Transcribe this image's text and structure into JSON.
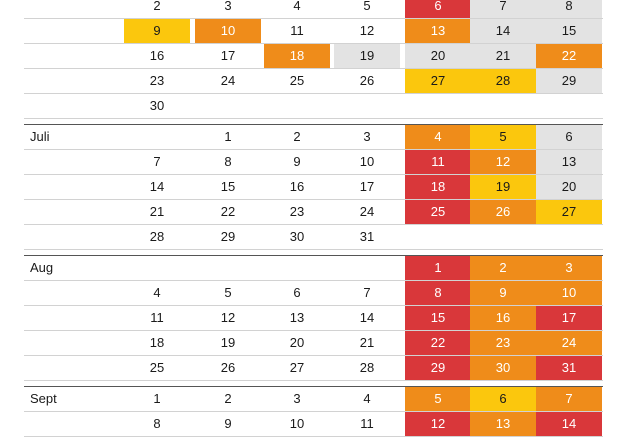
{
  "colors": {
    "red": "#d9373a",
    "orange": "#ef8c1a",
    "yellow": "#fbc70d",
    "grey": "#e3e3e3",
    "white": "#ffffff"
  },
  "months": [
    {
      "label": "",
      "weeks": [
        [
          null,
          "2",
          "3",
          "4",
          "5",
          {
            "d": "6",
            "c": "red"
          },
          {
            "d": "7",
            "c": "grey"
          },
          {
            "d": "8",
            "c": "grey"
          }
        ],
        [
          null,
          {
            "d": "9",
            "c": "yellow"
          },
          {
            "d": "10",
            "c": "orange"
          },
          "11",
          "12",
          {
            "d": "13",
            "c": "orange"
          },
          {
            "d": "14",
            "c": "grey"
          },
          {
            "d": "15",
            "c": "grey"
          }
        ],
        [
          null,
          "16",
          "17",
          {
            "d": "18",
            "c": "orange"
          },
          {
            "d": "19",
            "c": "grey"
          },
          {
            "d": "20",
            "c": "grey"
          },
          {
            "d": "21",
            "c": "grey"
          },
          {
            "d": "22",
            "c": "orange"
          }
        ],
        [
          null,
          "23",
          "24",
          "25",
          "26",
          {
            "d": "27",
            "c": "yellow"
          },
          {
            "d": "28",
            "c": "yellow"
          },
          {
            "d": "29",
            "c": "grey"
          }
        ],
        [
          null,
          "30",
          null,
          null,
          null,
          null,
          null,
          null
        ]
      ]
    },
    {
      "label": "Juli",
      "weeks": [
        [
          null,
          null,
          "1",
          "2",
          "3",
          {
            "d": "4",
            "c": "orange"
          },
          {
            "d": "5",
            "c": "yellow"
          },
          {
            "d": "6",
            "c": "grey"
          }
        ],
        [
          null,
          "7",
          "8",
          "9",
          "10",
          {
            "d": "11",
            "c": "red"
          },
          {
            "d": "12",
            "c": "orange"
          },
          {
            "d": "13",
            "c": "grey"
          }
        ],
        [
          null,
          "14",
          "15",
          "16",
          "17",
          {
            "d": "18",
            "c": "red"
          },
          {
            "d": "19",
            "c": "yellow"
          },
          {
            "d": "20",
            "c": "grey"
          }
        ],
        [
          null,
          "21",
          "22",
          "23",
          "24",
          {
            "d": "25",
            "c": "red"
          },
          {
            "d": "26",
            "c": "orange"
          },
          {
            "d": "27",
            "c": "yellow"
          }
        ],
        [
          null,
          "28",
          "29",
          "30",
          "31",
          null,
          null,
          null
        ]
      ]
    },
    {
      "label": "Aug",
      "weeks": [
        [
          null,
          null,
          null,
          null,
          null,
          {
            "d": "1",
            "c": "red"
          },
          {
            "d": "2",
            "c": "orange"
          },
          {
            "d": "3",
            "c": "orange"
          }
        ],
        [
          null,
          "4",
          "5",
          "6",
          "7",
          {
            "d": "8",
            "c": "red"
          },
          {
            "d": "9",
            "c": "orange"
          },
          {
            "d": "10",
            "c": "orange"
          }
        ],
        [
          null,
          "11",
          "12",
          "13",
          "14",
          {
            "d": "15",
            "c": "red"
          },
          {
            "d": "16",
            "c": "orange"
          },
          {
            "d": "17",
            "c": "red"
          }
        ],
        [
          null,
          "18",
          "19",
          "20",
          "21",
          {
            "d": "22",
            "c": "red"
          },
          {
            "d": "23",
            "c": "orange"
          },
          {
            "d": "24",
            "c": "orange"
          }
        ],
        [
          null,
          "25",
          "26",
          "27",
          "28",
          {
            "d": "29",
            "c": "red"
          },
          {
            "d": "30",
            "c": "orange"
          },
          {
            "d": "31",
            "c": "red"
          }
        ]
      ]
    },
    {
      "label": "Sept",
      "weeks": [
        [
          null,
          "1",
          "2",
          "3",
          "4",
          {
            "d": "5",
            "c": "orange"
          },
          {
            "d": "6",
            "c": "yellow"
          },
          {
            "d": "7",
            "c": "orange"
          }
        ],
        [
          null,
          "8",
          "9",
          "10",
          "11",
          {
            "d": "12",
            "c": "red"
          },
          {
            "d": "13",
            "c": "orange"
          },
          {
            "d": "14",
            "c": "red"
          }
        ]
      ]
    }
  ]
}
